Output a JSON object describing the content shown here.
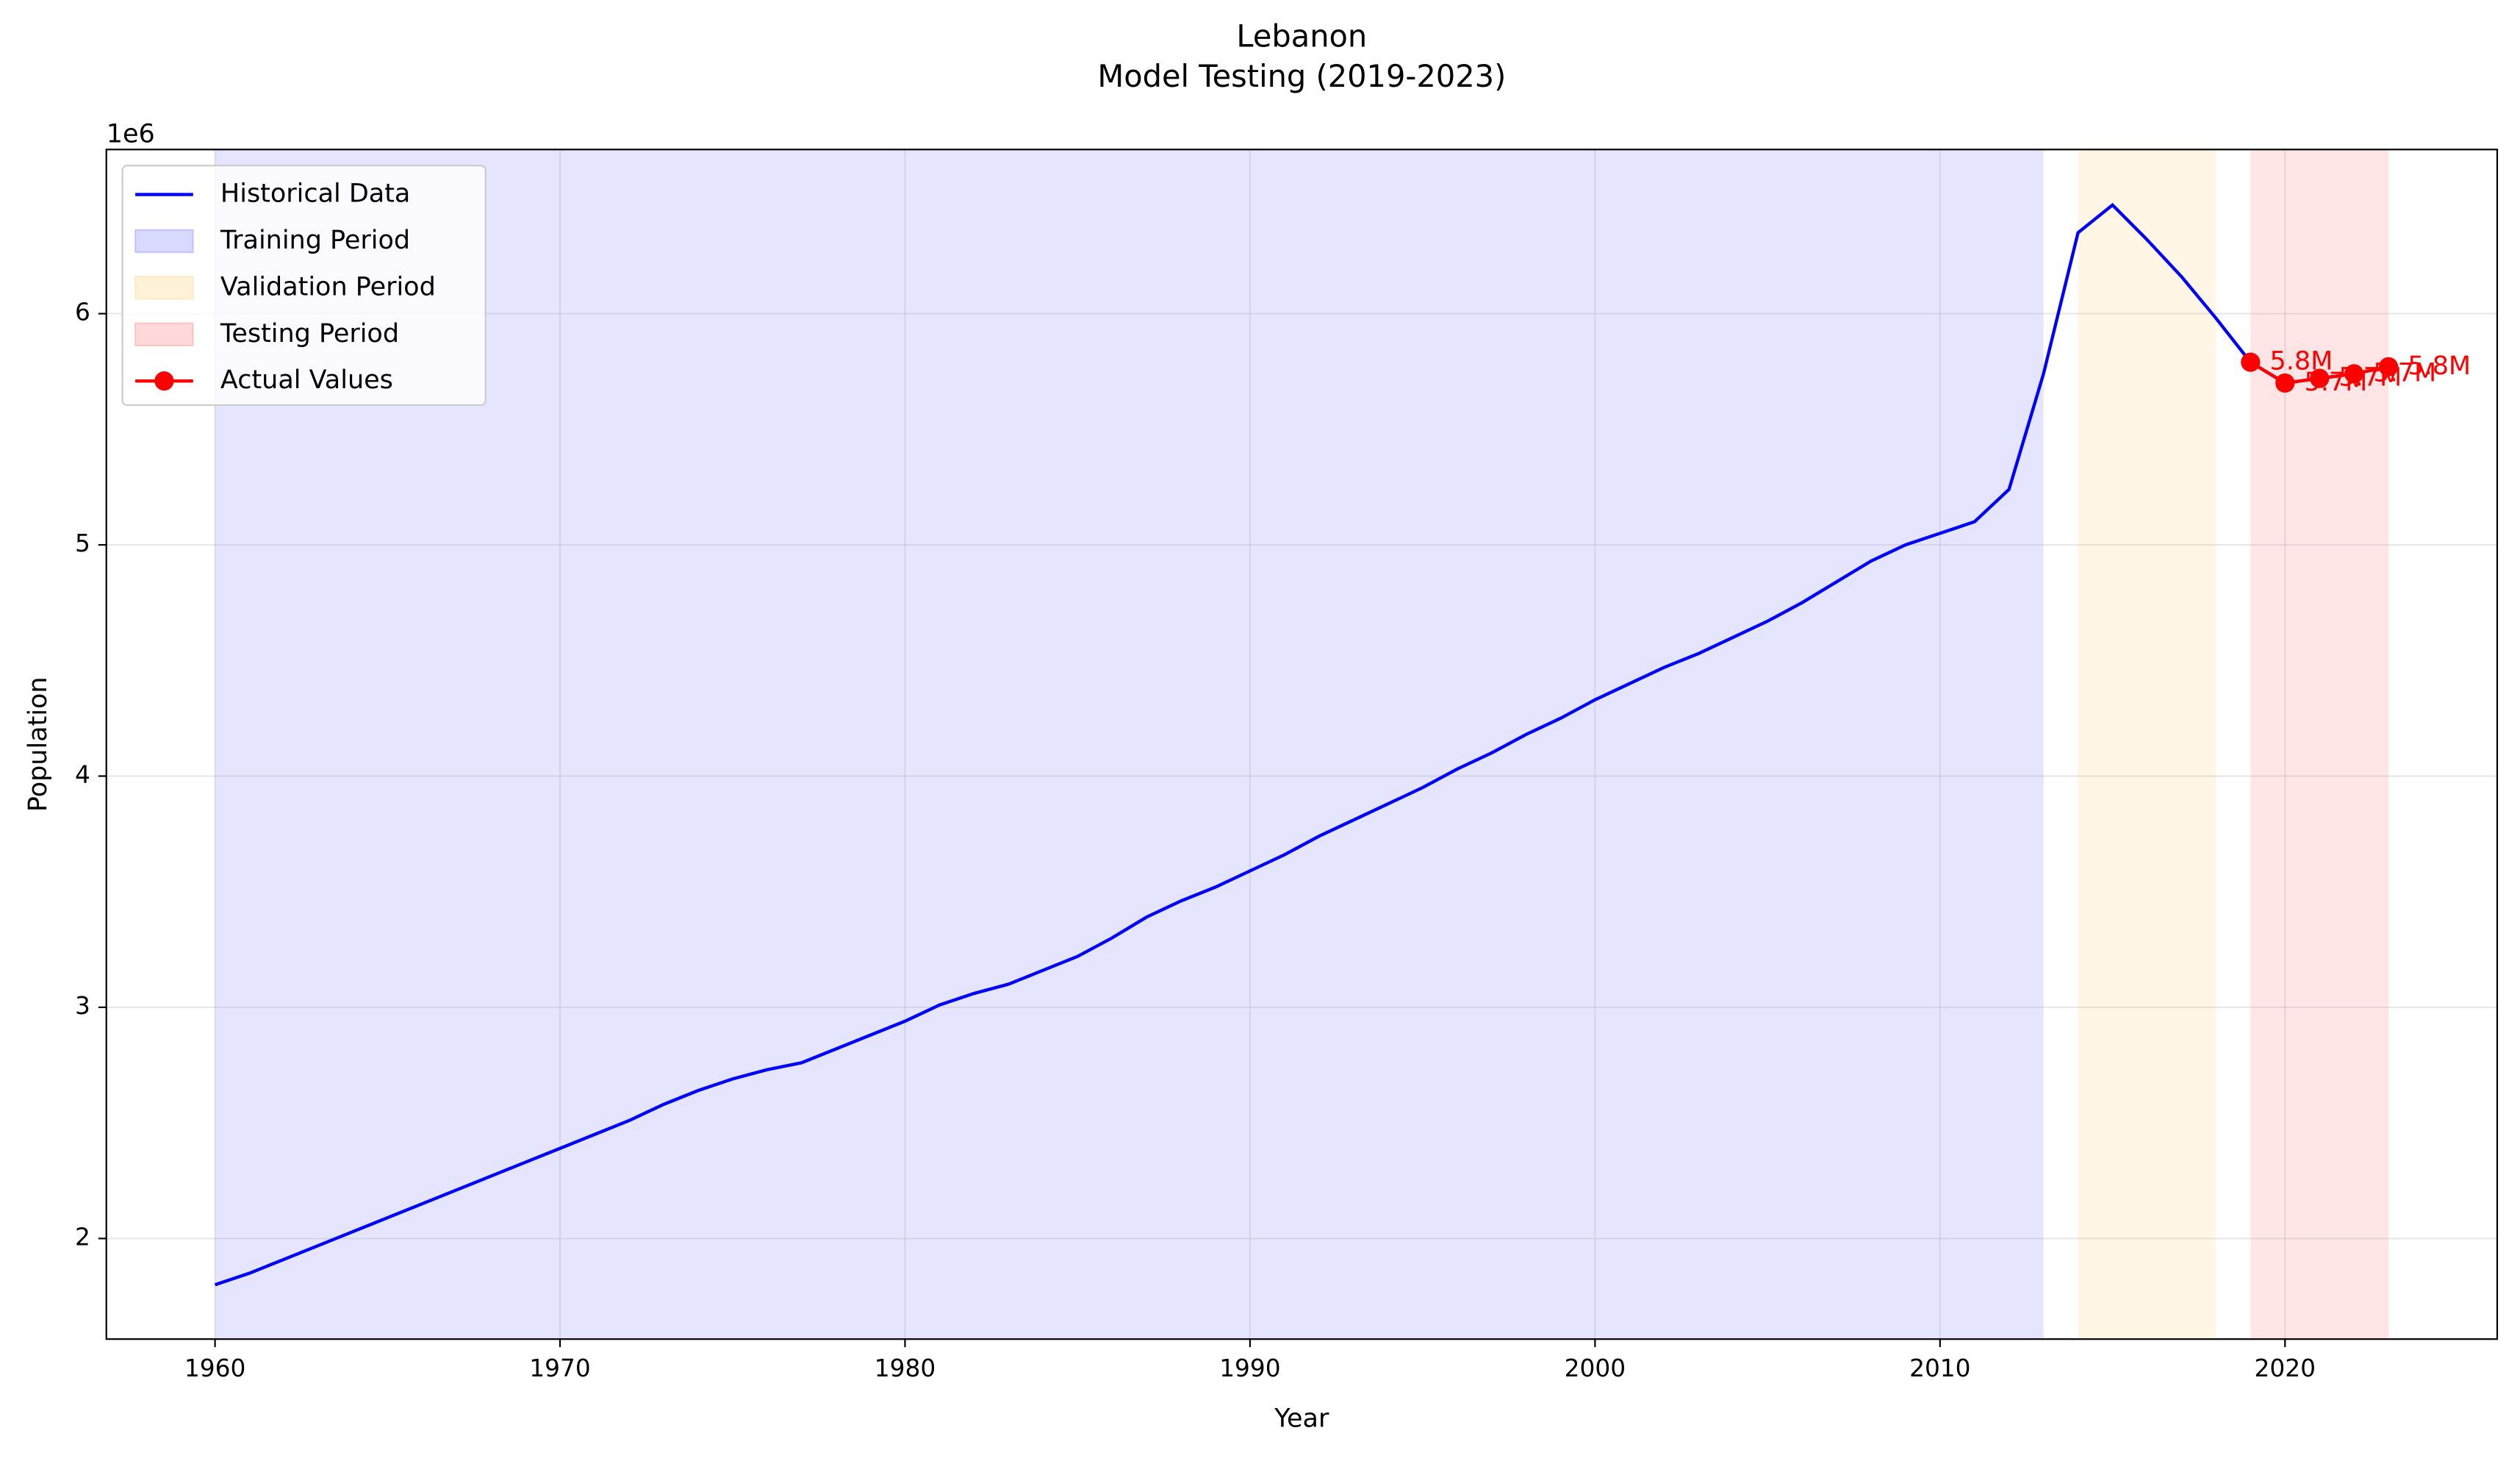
{
  "chart_data": {
    "type": "line",
    "title": "Lebanon",
    "subtitle": "Model Testing (2019-2023)",
    "x_label": "Year",
    "y_label": "Population",
    "y_offset_label": "1e6",
    "xlim": [
      1956.85,
      2026.15
    ],
    "ylim": [
      1565000,
      6710000
    ],
    "xticks": [
      1960,
      1970,
      1980,
      1990,
      2000,
      2010,
      2020
    ],
    "yticks": [
      {
        "value": 2000000,
        "label": "2"
      },
      {
        "value": 3000000,
        "label": "3"
      },
      {
        "value": 4000000,
        "label": "4"
      },
      {
        "value": 5000000,
        "label": "5"
      },
      {
        "value": 6000000,
        "label": "6"
      }
    ],
    "grid": true,
    "legend": "upper left",
    "spans": [
      {
        "name": "Training Period",
        "start": 1960,
        "end": 2013,
        "color": "#0000ff",
        "opacity": 0.1
      },
      {
        "name": "Validation Period",
        "start": 2014,
        "end": 2018,
        "color": "#ffa500",
        "opacity": 0.1
      },
      {
        "name": "Testing Period",
        "start": 2019,
        "end": 2023,
        "color": "#ff0000",
        "opacity": 0.1
      }
    ],
    "series": [
      {
        "name": "Historical Data",
        "color": "#0000ff",
        "x": [
          1960,
          1961,
          1962,
          1963,
          1964,
          1965,
          1966,
          1967,
          1968,
          1969,
          1970,
          1971,
          1972,
          1973,
          1974,
          1975,
          1976,
          1977,
          1978,
          1979,
          1980,
          1981,
          1982,
          1983,
          1984,
          1985,
          1986,
          1987,
          1988,
          1989,
          1990,
          1991,
          1992,
          1993,
          1994,
          1995,
          1996,
          1997,
          1998,
          1999,
          2000,
          2001,
          2002,
          2003,
          2004,
          2005,
          2006,
          2007,
          2008,
          2009,
          2010,
          2011,
          2012,
          2013,
          2014,
          2015,
          2016,
          2017,
          2018,
          2019,
          2020,
          2021,
          2022,
          2023
        ],
        "values": [
          1800000,
          1850000,
          1910000,
          1970000,
          2030000,
          2090000,
          2150000,
          2210000,
          2270000,
          2330000,
          2390000,
          2450000,
          2510000,
          2580000,
          2640000,
          2690000,
          2730000,
          2760000,
          2820000,
          2880000,
          2940000,
          3010000,
          3060000,
          3100000,
          3160000,
          3220000,
          3300000,
          3390000,
          3460000,
          3520000,
          3590000,
          3660000,
          3740000,
          3810000,
          3880000,
          3950000,
          4030000,
          4100000,
          4180000,
          4250000,
          4330000,
          4400000,
          4470000,
          4530000,
          4600000,
          4670000,
          4750000,
          4840000,
          4930000,
          5000000,
          5050000,
          5100000,
          5240000,
          5740000,
          6350000,
          6470000,
          6320000,
          6160000,
          5980000,
          5790000,
          5700000,
          5720000,
          5740000,
          5770000
        ]
      },
      {
        "name": "Actual Values",
        "color": "#ff0000",
        "x": [
          2019,
          2020,
          2021,
          2022,
          2023
        ],
        "values": [
          5790000,
          5700000,
          5720000,
          5740000,
          5770000
        ],
        "value_labels": [
          "5.8M",
          "5.7M",
          "5.7M",
          "5.7M",
          "5.8M"
        ]
      }
    ]
  }
}
